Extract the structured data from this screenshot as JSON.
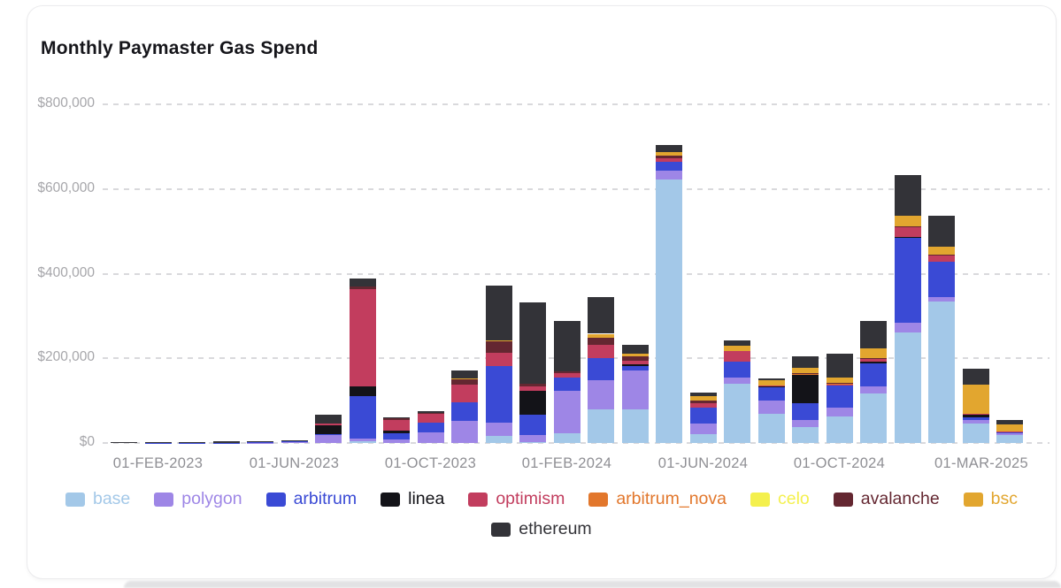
{
  "page": {
    "title": "Monthly Paymaster Gas Spend"
  },
  "chart_data": {
    "type": "bar",
    "stacked": true,
    "title": "Monthly Paymaster Gas Spend",
    "unit": "USD",
    "grid": "horizontal-dashed",
    "legend_position": "bottom",
    "y_axis": {
      "min": 0,
      "max": 800000,
      "ticks": [
        {
          "value": 0,
          "label": "$0"
        },
        {
          "value": 200000,
          "label": "$200,000"
        },
        {
          "value": 400000,
          "label": "$400,000"
        },
        {
          "value": 600000,
          "label": "$600,000"
        },
        {
          "value": 800000,
          "label": "$800,000"
        }
      ]
    },
    "x_axis": {
      "ticks": [
        {
          "label": "01-FEB-2023",
          "month_index": 1,
          "dx": 0
        },
        {
          "label": "01-JUN-2023",
          "month_index": 5,
          "dx": 0
        },
        {
          "label": "01-OCT-2023",
          "month_index": 9,
          "dx": 0
        },
        {
          "label": "01-FEB-2024",
          "month_index": 13,
          "dx": 0
        },
        {
          "label": "01-JUN-2024",
          "month_index": 17,
          "dx": 0
        },
        {
          "label": "01-OCT-2024",
          "month_index": 21,
          "dx": 0
        },
        {
          "label": "01-MAR-2025",
          "month_index": 26,
          "dx": -32
        }
      ]
    },
    "months": [
      "2023-01",
      "2023-02",
      "2023-03",
      "2023-04",
      "2023-05",
      "2023-06",
      "2023-07",
      "2023-08",
      "2023-09",
      "2023-10",
      "2023-11",
      "2023-12",
      "2024-01",
      "2024-02",
      "2024-03",
      "2024-04",
      "2024-05",
      "2024-06",
      "2024-07",
      "2024-08",
      "2024-09",
      "2024-10",
      "2024-11",
      "2024-12",
      "2025-01",
      "2025-02",
      "2025-03"
    ],
    "series": [
      {
        "name": "base",
        "color": "#a3c8e8",
        "values": [
          0,
          0,
          0,
          0,
          0,
          0,
          0,
          5000,
          0,
          0,
          0,
          17000,
          3000,
          24000,
          79000,
          79000,
          622000,
          21000,
          141000,
          69000,
          38000,
          62000,
          117000,
          261000,
          335000,
          47000,
          19000
        ]
      },
      {
        "name": "polygon",
        "color": "#9e86e6",
        "values": [
          0,
          0,
          500,
          0,
          500,
          4500,
          19000,
          6000,
          8000,
          25000,
          52000,
          31000,
          15000,
          100000,
          69000,
          93000,
          21000,
          24000,
          14000,
          31000,
          17000,
          21000,
          17000,
          23000,
          10000,
          8000,
          4000
        ]
      },
      {
        "name": "arbitrum",
        "color": "#3a4ad5",
        "values": [
          0,
          500,
          500,
          1000,
          1500,
          500,
          2000,
          100000,
          16000,
          24000,
          45000,
          133000,
          48000,
          31000,
          52000,
          10000,
          21000,
          38000,
          38000,
          32000,
          40000,
          52000,
          55000,
          200000,
          83000,
          6000,
          4000
        ]
      },
      {
        "name": "linea",
        "color": "#131318",
        "values": [
          0,
          0,
          0,
          0,
          0,
          0,
          20000,
          22000,
          5000,
          0,
          0,
          0,
          58000,
          0,
          0,
          3000,
          0,
          0,
          0,
          2000,
          67000,
          0,
          3000,
          3000,
          0,
          5000,
          0
        ]
      },
      {
        "name": "optimism",
        "color": "#c23d5e",
        "values": [
          0,
          0,
          0,
          0,
          0,
          0,
          6000,
          230000,
          25000,
          19000,
          41000,
          32000,
          10000,
          10000,
          31000,
          10000,
          8000,
          12000,
          24000,
          2000,
          0,
          3000,
          7000,
          22000,
          14000,
          2000,
          1000
        ]
      },
      {
        "name": "arbitrum_nova",
        "color": "#e2772c",
        "values": [
          0,
          0,
          0,
          0,
          0,
          0,
          0,
          0,
          0,
          0,
          0,
          0,
          0,
          0,
          0,
          0,
          0,
          0,
          0,
          0,
          2000,
          2000,
          0,
          0,
          0,
          0,
          0
        ]
      },
      {
        "name": "celo",
        "color": "#f4f04d",
        "values": [
          0,
          0,
          0,
          0,
          0,
          0,
          0,
          0,
          0,
          0,
          0,
          0,
          0,
          0,
          0,
          0,
          0,
          0,
          0,
          0,
          0,
          0,
          0,
          0,
          0,
          0,
          0
        ]
      },
      {
        "name": "avalanche",
        "color": "#642731",
        "values": [
          0,
          0,
          0,
          0,
          0,
          0,
          0,
          6000,
          4000,
          4000,
          12000,
          27000,
          7000,
          4000,
          17000,
          10000,
          6000,
          5000,
          0,
          0,
          2000,
          2000,
          2000,
          2000,
          2000,
          0,
          0
        ]
      },
      {
        "name": "bsc",
        "color": "#e2a62f",
        "values": [
          0,
          0,
          0,
          0,
          0,
          0,
          0,
          0,
          0,
          0,
          2000,
          2000,
          0,
          0,
          10000,
          7000,
          10000,
          10000,
          12000,
          12000,
          12000,
          12000,
          23000,
          26000,
          19000,
          70000,
          15000
        ]
      },
      {
        "name": "ethereum",
        "color": "#333338",
        "values": [
          1500,
          1500,
          2000,
          3000,
          2500,
          1500,
          19000,
          19000,
          3000,
          4000,
          19000,
          129000,
          192000,
          119000,
          86000,
          19000,
          17000,
          10000,
          14000,
          5000,
          27000,
          57000,
          65000,
          96000,
          74000,
          38000,
          11000
        ]
      }
    ]
  }
}
